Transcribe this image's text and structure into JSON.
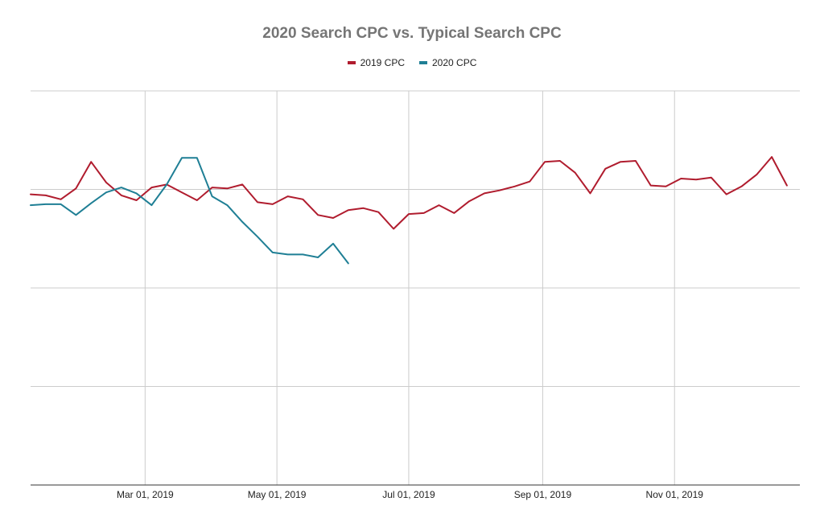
{
  "chart_data": {
    "type": "line",
    "title": "2020 Search CPC vs. Typical Search CPC",
    "x_ticks": [
      "Mar 01, 2019",
      "May 01, 2019",
      "Jul 01, 2019",
      "Sep 01, 2019",
      "Nov 01, 2019"
    ],
    "x_tick_dates": [
      "2019-03-01",
      "2019-05-01",
      "2019-07-01",
      "2019-09-01",
      "2019-11-01"
    ],
    "xlim": [
      "2019-01-07",
      "2019-12-29"
    ],
    "y_tick_labels_shown": false,
    "ylim": [
      0,
      4
    ],
    "grid": true,
    "legend_position": "top",
    "series": [
      {
        "name": "2019 CPC",
        "color": "#b01c2e",
        "x": [
          "2019-01-07",
          "2019-01-14",
          "2019-01-21",
          "2019-01-28",
          "2019-02-04",
          "2019-02-11",
          "2019-02-18",
          "2019-02-25",
          "2019-03-04",
          "2019-03-11",
          "2019-03-18",
          "2019-03-25",
          "2019-04-01",
          "2019-04-08",
          "2019-04-15",
          "2019-04-22",
          "2019-04-29",
          "2019-05-06",
          "2019-05-13",
          "2019-05-20",
          "2019-05-27",
          "2019-06-03",
          "2019-06-10",
          "2019-06-17",
          "2019-06-24",
          "2019-07-01",
          "2019-07-08",
          "2019-07-15",
          "2019-07-22",
          "2019-07-29",
          "2019-08-05",
          "2019-08-12",
          "2019-08-19",
          "2019-08-26",
          "2019-09-02",
          "2019-09-09",
          "2019-09-16",
          "2019-09-23",
          "2019-09-30",
          "2019-10-07",
          "2019-10-14",
          "2019-10-21",
          "2019-10-28",
          "2019-11-04",
          "2019-11-11",
          "2019-11-18",
          "2019-11-25",
          "2019-12-02",
          "2019-12-09",
          "2019-12-16",
          "2019-12-23"
        ],
        "values": [
          2.95,
          2.94,
          2.9,
          3.01,
          3.28,
          3.07,
          2.94,
          2.89,
          3.02,
          3.05,
          2.97,
          2.89,
          3.02,
          3.01,
          3.05,
          2.87,
          2.85,
          2.93,
          2.9,
          2.74,
          2.71,
          2.79,
          2.81,
          2.77,
          2.6,
          2.75,
          2.76,
          2.84,
          2.76,
          2.88,
          2.96,
          2.99,
          3.03,
          3.08,
          3.28,
          3.29,
          3.17,
          2.96,
          3.21,
          3.28,
          3.29,
          3.04,
          3.03,
          3.11,
          3.1,
          3.12,
          2.95,
          3.03,
          3.15,
          3.33,
          3.04
        ]
      },
      {
        "name": "2020 CPC",
        "color": "#1f7f95",
        "x": [
          "2019-01-07",
          "2019-01-14",
          "2019-01-21",
          "2019-01-28",
          "2019-02-04",
          "2019-02-11",
          "2019-02-18",
          "2019-02-25",
          "2019-03-04",
          "2019-03-11",
          "2019-03-18",
          "2019-03-25",
          "2019-04-01",
          "2019-04-08",
          "2019-04-15",
          "2019-04-22",
          "2019-04-29",
          "2019-05-06",
          "2019-05-13",
          "2019-05-20",
          "2019-05-27",
          "2019-06-03"
        ],
        "values": [
          2.84,
          2.85,
          2.85,
          2.74,
          2.86,
          2.97,
          3.02,
          2.96,
          2.84,
          3.05,
          3.32,
          3.32,
          2.93,
          2.84,
          2.67,
          2.52,
          2.36,
          2.34,
          2.34,
          2.31,
          2.45,
          2.25
        ]
      }
    ]
  }
}
